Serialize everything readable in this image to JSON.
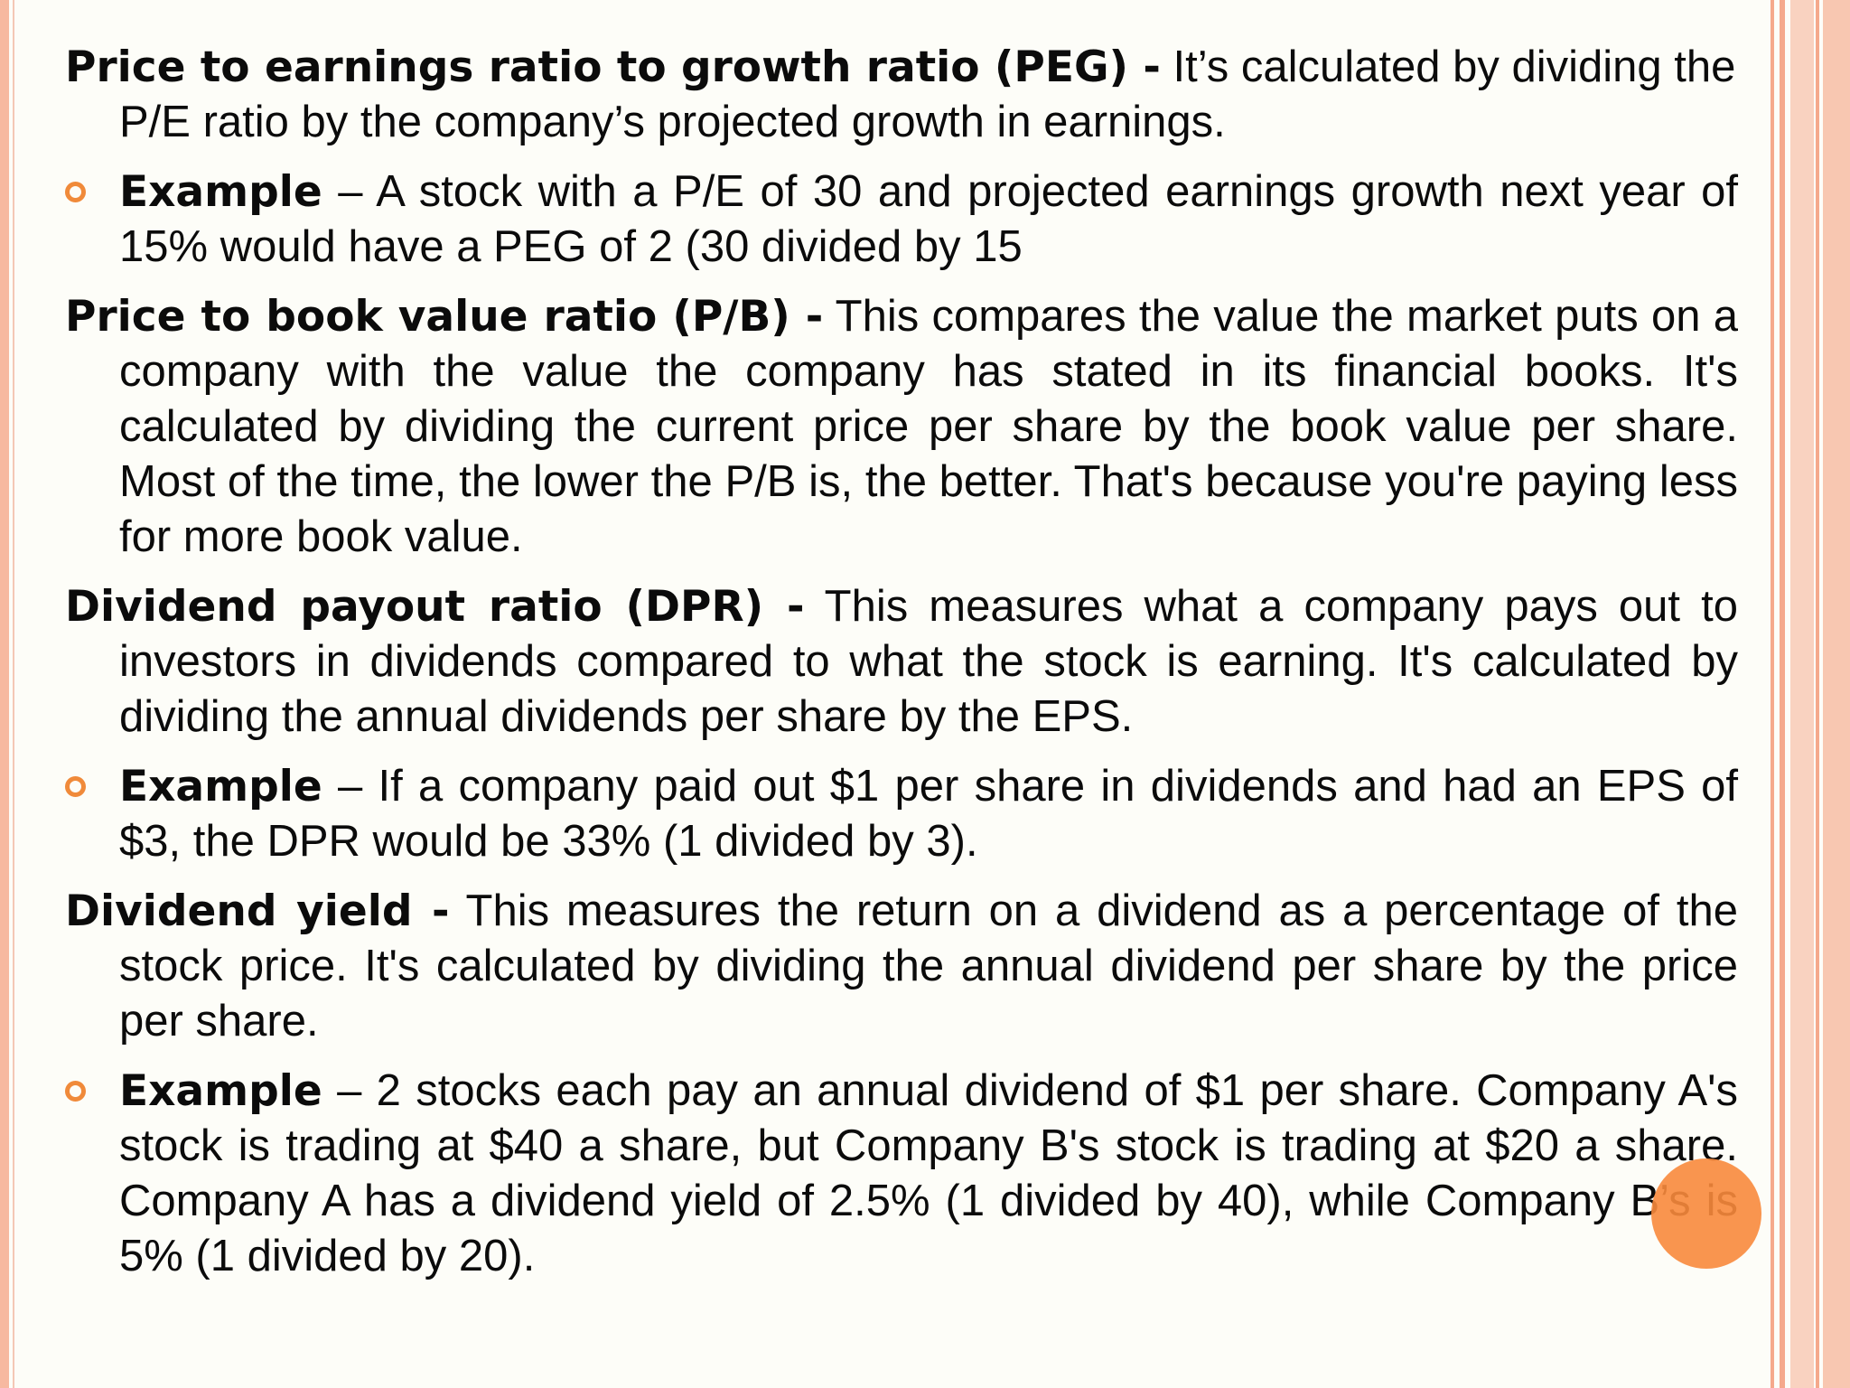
{
  "colors": {
    "background": "#fdfdf8",
    "accent": "#f08a3a",
    "border": "#f5a98c",
    "pointer": "#f88a3c"
  },
  "sections": [
    {
      "term": "Price to earnings ratio to growth ratio (PEG) -",
      "text": " It’s calculated by dividing the P/E ratio by the company’s projected growth in earnings.",
      "example": {
        "label": "Example",
        "text": " – A stock with a P/E of 30 and projected earnings growth next year of 15% would have a PEG of 2 (30 divided by 15"
      }
    },
    {
      "term": "Price to book value ratio (P/B) -",
      "text": " This compares the value the market puts on a company with the value the company has stated in its financial books. It's calculated by dividing the current price per share by the book value per share. Most of the time, the lower the P/B is, the better. That's because you're paying less for more book value."
    },
    {
      "term": "Dividend payout ratio (DPR) -",
      "text": " This measures what a company pays out to investors in dividends compared to what the stock is earning. It's calculated by dividing the annual dividends per share by the EPS.",
      "example": {
        "label": "Example",
        "text": " – If a company paid out $1 per share in dividends and had an EPS of $3, the DPR would be 33% (1 divided by 3)."
      }
    },
    {
      "term": "Dividend yield -",
      "text": " This measures the return on a dividend as a percentage of the stock price. It's calculated by dividing the annual dividend per share by the price per share.",
      "example": {
        "label": "Example",
        "text": " – 2 stocks each pay an annual dividend of $1 per share. Company A's stock is trading at $40 a share, but Company B's stock is trading at $20 a share. Company A has a dividend yield of 2.5% (1 divided by 40), while Company B’s is 5% (1 divided by 20)."
      }
    }
  ]
}
